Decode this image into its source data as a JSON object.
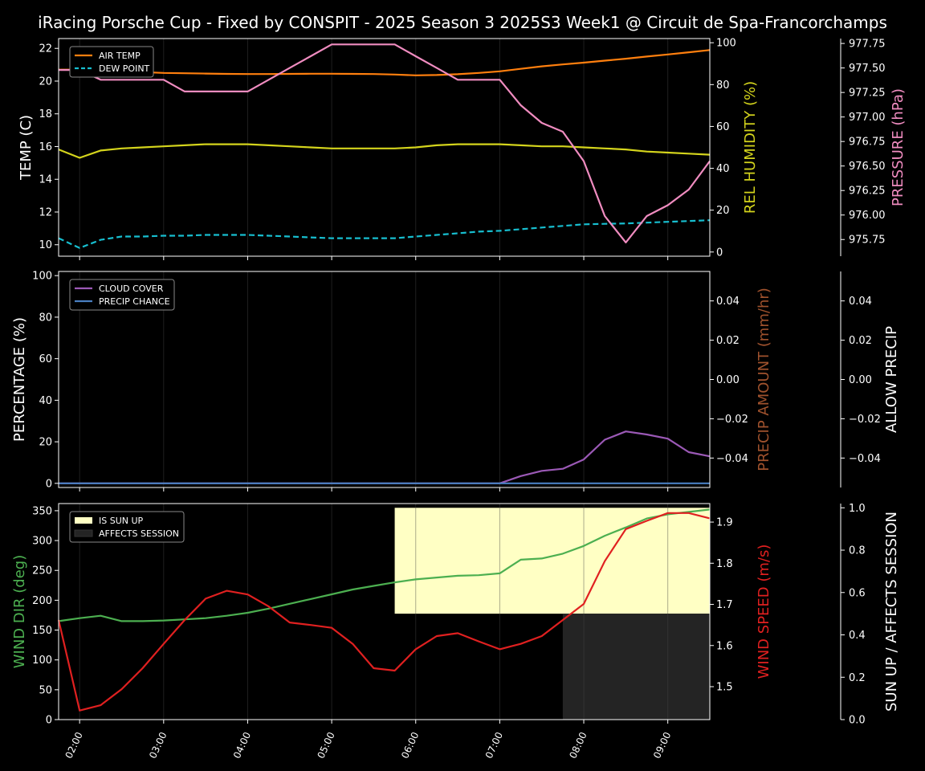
{
  "title": "iRacing Porsche Cup - Fixed by CONSPIT - 2025 Season 3 2025S3 Week1 @ Circuit de Spa-Francorchamps",
  "colors": {
    "background": "#000000",
    "axis": "#ffffff",
    "air_temp": "#ff7f0e",
    "dew_point": "#17becf",
    "humidity": "#d4d41c",
    "pressure": "#f08cc0",
    "cloud_cover": "#9b59b6",
    "precip_chance": "#4a7fc1",
    "precip_amount": "#a0522d",
    "wind_dir": "#4caf50",
    "wind_speed": "#e02020",
    "sun_up": "#ffffc4",
    "affects_session": "#242424"
  },
  "chart_data": [
    {
      "type": "line",
      "x": [
        "01:45",
        "02:00",
        "02:15",
        "02:30",
        "02:45",
        "03:00",
        "03:15",
        "03:30",
        "03:45",
        "04:00",
        "04:15",
        "04:30",
        "04:45",
        "05:00",
        "05:15",
        "05:30",
        "05:45",
        "06:00",
        "06:15",
        "06:30",
        "06:45",
        "07:00",
        "07:15",
        "07:30",
        "07:45",
        "08:00",
        "08:15",
        "08:30",
        "08:45",
        "09:00",
        "09:15",
        "09:30"
      ],
      "xticks": [
        "02:00",
        "03:00",
        "04:00",
        "05:00",
        "06:00",
        "07:00",
        "08:00",
        "09:00"
      ],
      "grid": "vertical",
      "legend": {
        "position": "top-left",
        "entries": [
          "AIR TEMP",
          "DEW POINT"
        ]
      },
      "axes": {
        "left": {
          "label": "TEMP (C)",
          "ylim": [
            9.3,
            22.6
          ],
          "ticks": [
            "10",
            "12",
            "14",
            "16",
            "18",
            "20",
            "22"
          ]
        },
        "right1": {
          "label": "REL HUMIDITY (%)",
          "ylim": [
            -2,
            102
          ],
          "ticks": [
            "0",
            "20",
            "40",
            "60",
            "80",
            "100"
          ]
        },
        "right2": {
          "label": "PRESSURE (hPa)",
          "ylim": [
            975.58,
            977.8
          ],
          "ticks": [
            "975.75",
            "976.00",
            "976.25",
            "976.50",
            "976.75",
            "977.00",
            "977.25",
            "977.50",
            "977.75"
          ]
        }
      },
      "series": [
        {
          "name": "AIR TEMP",
          "axis": "left",
          "style": "solid",
          "values": [
            20.7,
            20.7,
            20.65,
            20.6,
            20.55,
            20.5,
            20.48,
            20.46,
            20.44,
            20.43,
            20.43,
            20.44,
            20.45,
            20.45,
            20.44,
            20.43,
            20.4,
            20.35,
            20.37,
            20.42,
            20.5,
            20.6,
            20.75,
            20.9,
            21.02,
            21.13,
            21.25,
            21.37,
            21.5,
            21.63,
            21.76,
            21.9
          ]
        },
        {
          "name": "DEW POINT",
          "axis": "left",
          "style": "dashed",
          "values": [
            10.4,
            9.8,
            10.3,
            10.5,
            10.5,
            10.55,
            10.55,
            10.6,
            10.6,
            10.6,
            10.55,
            10.5,
            10.45,
            10.4,
            10.4,
            10.4,
            10.4,
            10.5,
            10.6,
            10.7,
            10.8,
            10.85,
            10.95,
            11.05,
            11.15,
            11.25,
            11.28,
            11.3,
            11.35,
            11.4,
            11.45,
            11.5
          ]
        },
        {
          "axis": "right1",
          "style": "solid",
          "values": [
            49,
            45,
            48.5,
            49.5,
            50,
            50.5,
            51,
            51.5,
            51.5,
            51.5,
            51,
            50.5,
            50,
            49.5,
            49.5,
            49.5,
            49.5,
            50,
            51,
            51.5,
            51.5,
            51.5,
            51,
            50.5,
            50.5,
            50,
            49.5,
            49,
            48,
            47.5,
            47,
            46.5
          ]
        },
        {
          "axis": "right2",
          "style": "solid",
          "values": [
            977.48,
            977.48,
            977.38,
            977.38,
            977.38,
            977.38,
            977.26,
            977.26,
            977.26,
            977.26,
            977.38,
            977.5,
            977.62,
            977.74,
            977.74,
            977.74,
            977.74,
            977.62,
            977.5,
            977.38,
            977.38,
            977.38,
            977.12,
            976.94,
            976.85,
            976.55,
            975.99,
            975.72,
            975.99,
            976.1,
            976.26,
            976.55
          ]
        }
      ]
    },
    {
      "type": "line",
      "legend": {
        "position": "top-left",
        "entries": [
          "CLOUD COVER",
          "PRECIP CHANCE"
        ]
      },
      "axes": {
        "left": {
          "label": "PERCENTAGE (%)",
          "ylim": [
            -2,
            102
          ],
          "ticks": [
            "0",
            "20",
            "40",
            "60",
            "80",
            "100"
          ]
        },
        "right1": {
          "label": "PRECIP AMOUNT (mm/hr)",
          "ylim": [
            -0.055,
            0.055
          ],
          "ticks": [
            "−0.04",
            "−0.02",
            "0.00",
            "0.02",
            "0.04"
          ]
        },
        "right2": {
          "label": "ALLOW PRECIP",
          "ylim": [
            -0.055,
            0.055
          ],
          "ticks": [
            "−0.04",
            "−0.02",
            "0.00",
            "0.02",
            "0.04"
          ]
        }
      },
      "series": [
        {
          "name": "CLOUD COVER",
          "axis": "left",
          "values": [
            0,
            0,
            0,
            0,
            0,
            0,
            0,
            0,
            0,
            0,
            0,
            0,
            0,
            0,
            0,
            0,
            0,
            0,
            0,
            0,
            0,
            0,
            3.5,
            6,
            7,
            11.5,
            21,
            25,
            23.5,
            21.5,
            15,
            13
          ]
        },
        {
          "name": "PRECIP CHANCE",
          "axis": "left",
          "values": [
            0,
            0,
            0,
            0,
            0,
            0,
            0,
            0,
            0,
            0,
            0,
            0,
            0,
            0,
            0,
            0,
            0,
            0,
            0,
            0,
            0,
            0,
            0,
            0,
            0,
            0,
            0,
            0,
            0,
            0,
            0,
            0
          ]
        }
      ]
    },
    {
      "type": "line",
      "legend": {
        "position": "top-left",
        "entries": [
          "IS SUN UP",
          "AFFECTS SESSION"
        ]
      },
      "axes": {
        "left": {
          "label": "WIND DIR (deg)",
          "ylim": [
            0,
            362
          ],
          "ticks": [
            "0",
            "50",
            "100",
            "150",
            "200",
            "250",
            "300",
            "350"
          ]
        },
        "right1": {
          "label": "WIND SPEED (m/s)",
          "ylim": [
            1.42,
            1.945
          ],
          "ticks": [
            "1.5",
            "1.6",
            "1.7",
            "1.8",
            "1.9"
          ]
        },
        "right2": {
          "label": "SUN UP / AFFECTS SESSION",
          "ylim": [
            0,
            1.02
          ],
          "ticks": [
            "0.0",
            "0.2",
            "0.4",
            "0.6",
            "0.8",
            "1.0"
          ]
        }
      },
      "bands": [
        {
          "name": "IS SUN UP",
          "x_range": [
            "05:45",
            "09:30"
          ],
          "value": 1
        },
        {
          "name": "AFFECTS SESSION",
          "x_range": [
            "07:45",
            "09:30"
          ],
          "value": 0.5
        }
      ],
      "series": [
        {
          "axis": "left",
          "values": [
            165,
            170,
            174,
            165,
            165,
            166,
            168,
            170,
            174,
            179,
            186,
            194,
            202,
            210,
            218,
            224,
            230,
            235,
            238,
            241,
            242,
            245,
            268,
            270,
            278,
            291,
            308,
            322,
            337,
            344,
            348,
            352
          ]
        },
        {
          "axis": "right1",
          "values": [
            1.662,
            1.442,
            1.455,
            1.494,
            1.545,
            1.604,
            1.662,
            1.714,
            1.733,
            1.724,
            1.695,
            1.656,
            1.65,
            1.643,
            1.604,
            1.545,
            1.539,
            1.591,
            1.623,
            1.63,
            1.61,
            1.591,
            1.604,
            1.623,
            1.662,
            1.701,
            1.805,
            1.883,
            1.903,
            1.922,
            1.922,
            1.909
          ]
        }
      ]
    }
  ]
}
